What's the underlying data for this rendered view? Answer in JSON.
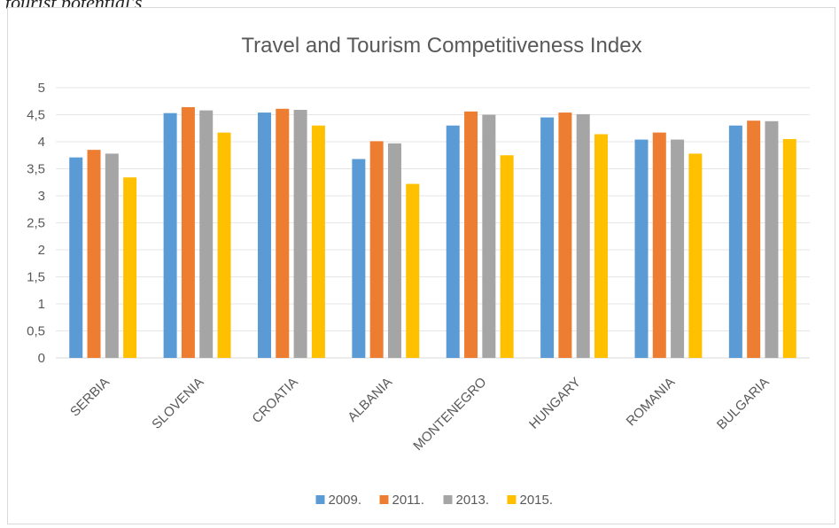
{
  "page": {
    "top_fragment": "tourist potential's"
  },
  "chart_data": {
    "type": "bar",
    "title": "Travel and Tourism Competitiveness Index",
    "xlabel": "",
    "ylabel": "",
    "ylim": [
      0,
      5
    ],
    "yticks": [
      0,
      0.5,
      1,
      1.5,
      2,
      2.5,
      3,
      3.5,
      4,
      4.5,
      5
    ],
    "ytick_labels": [
      "0",
      "0,5",
      "1",
      "1,5",
      "2",
      "2,5",
      "3",
      "3,5",
      "4",
      "4,5",
      "5"
    ],
    "grid": true,
    "legend_position": "bottom",
    "categories": [
      "SERBIA",
      "SLOVENIA",
      "CROATIA",
      "ALBANIA",
      "MONTENEGRO",
      "HUNGARY",
      "ROMANIA",
      "BULGARIA"
    ],
    "series": [
      {
        "name": "2009.",
        "color": "#5b9bd5",
        "values": [
          3.71,
          4.53,
          4.54,
          3.68,
          4.3,
          4.45,
          4.04,
          4.3
        ]
      },
      {
        "name": "2011.",
        "color": "#ed7d31",
        "values": [
          3.85,
          4.64,
          4.61,
          4.01,
          4.56,
          4.54,
          4.17,
          4.39
        ]
      },
      {
        "name": "2013.",
        "color": "#a5a5a5",
        "values": [
          3.78,
          4.58,
          4.59,
          3.97,
          4.5,
          4.51,
          4.04,
          4.38
        ]
      },
      {
        "name": "2015.",
        "color": "#ffc000",
        "values": [
          3.34,
          4.17,
          4.3,
          3.22,
          3.75,
          4.14,
          3.78,
          4.05
        ]
      }
    ]
  }
}
